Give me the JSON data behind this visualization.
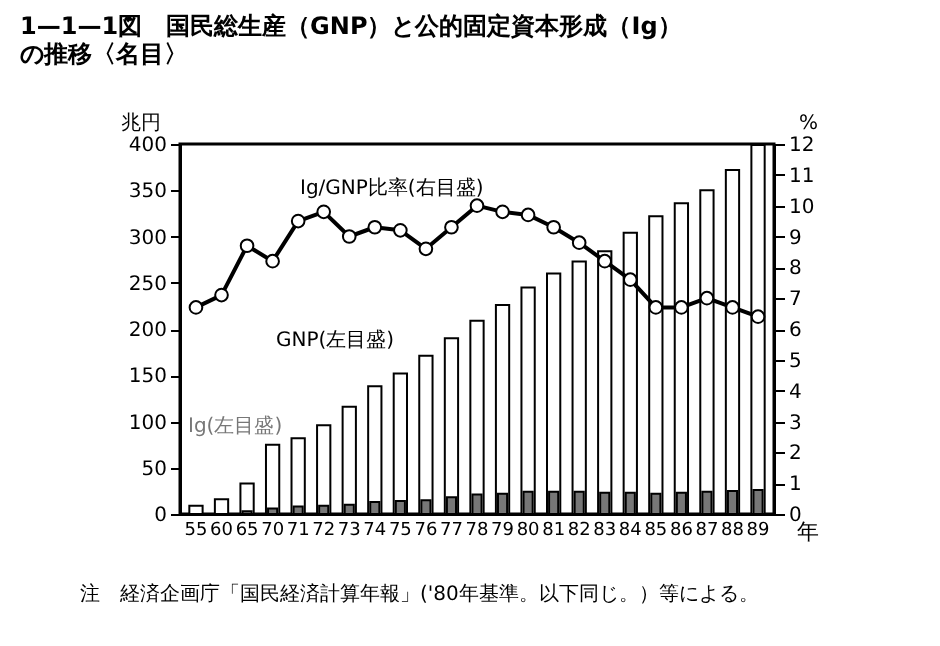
{
  "chart_data": {
    "type": "bar",
    "title": "1—1—1図　国民総生産（GNP）と公的固定資本形成（Ig）の推移〈名目〉",
    "ylabel": "兆円",
    "y2label": "%",
    "xlabel": "年",
    "categories": [
      "55",
      "60",
      "65",
      "70",
      "71",
      "72",
      "73",
      "74",
      "75",
      "76",
      "77",
      "78",
      "79",
      "80",
      "81",
      "82",
      "83",
      "84",
      "85",
      "86",
      "87",
      "88",
      "89"
    ],
    "series": [
      {
        "name": "GNP(左目盛)",
        "color": "#ffffff",
        "values": [
          9,
          16,
          33,
          75,
          82,
          96,
          116,
          138,
          152,
          171,
          190,
          209,
          226,
          245,
          260,
          273,
          284,
          304,
          322,
          336,
          350,
          372,
          399
        ]
      },
      {
        "name": "Ig(左目盛)",
        "color": "#777777",
        "values": [
          null,
          null,
          3,
          6,
          8,
          9,
          10,
          13,
          14,
          15,
          18,
          21,
          22,
          24,
          24,
          24,
          23,
          23,
          22,
          23,
          24,
          25,
          26
        ]
      },
      {
        "name": "Ig/GNP比率(右目盛)",
        "type": "line",
        "axis": "y2",
        "color": "#000000",
        "marker": "circle",
        "line_style": "solid",
        "values": [
          6.7,
          7.1,
          8.7,
          8.2,
          9.5,
          9.8,
          9.0,
          9.3,
          9.2,
          8.6,
          9.3,
          10.0,
          9.8,
          9.7,
          9.3,
          8.8,
          8.2,
          7.6,
          6.7,
          6.7,
          7.0,
          6.7,
          6.4
        ]
      }
    ],
    "ylim": [
      0,
      400
    ],
    "yticks": [
      0,
      50,
      100,
      150,
      200,
      250,
      300,
      350,
      400
    ],
    "y2lim": [
      0,
      12
    ],
    "y2ticks": [
      0,
      1,
      2,
      3,
      4,
      5,
      6,
      7,
      8,
      9,
      10,
      11,
      12
    ],
    "grid": false,
    "annotations": [
      "注　経済企画庁「国民経済計算年報」('80年基準。以下同じ。）等による。"
    ]
  }
}
